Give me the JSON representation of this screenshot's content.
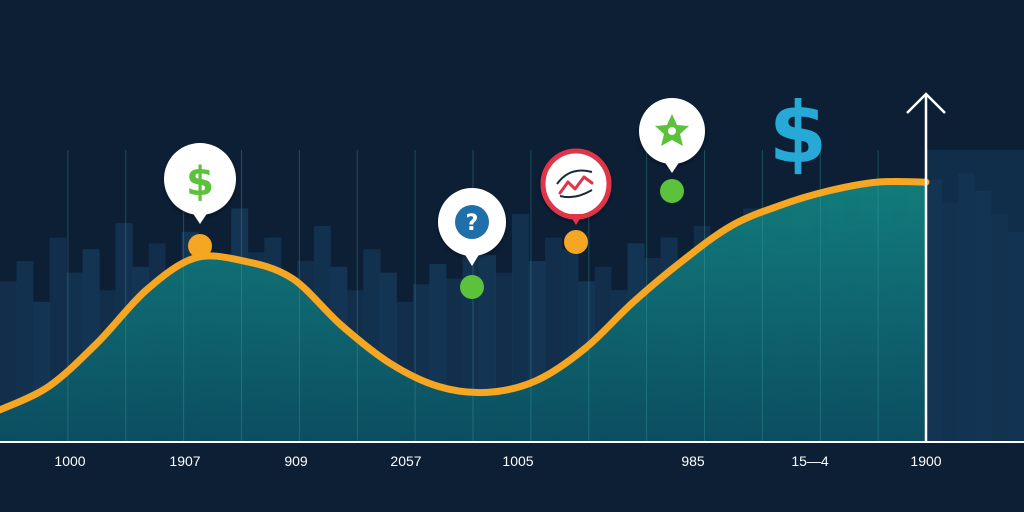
{
  "chart_data": {
    "type": "area",
    "title": "",
    "xlabel": "",
    "ylabel": "",
    "x_tick_labels": [
      "1000",
      "1907",
      "909",
      "2057",
      "1005",
      "985",
      "15—4",
      "1900"
    ],
    "series": [
      {
        "values": [
          0.11,
          0.19,
          0.34,
          0.52,
          0.63,
          0.62,
          0.56,
          0.4,
          0.27,
          0.19,
          0.17,
          0.21,
          0.32,
          0.48,
          0.62,
          0.74,
          0.81,
          0.86,
          0.89,
          0.89
        ]
      }
    ],
    "ylim": [
      0,
      1
    ],
    "grid": true,
    "markers": [
      {
        "x_index": 2,
        "icon": "dollar-icon",
        "dot_color": "#f5a623",
        "text": "$"
      },
      {
        "x_index": 8,
        "icon": "question-icon",
        "dot_color": "#5cc13b",
        "text": "?"
      },
      {
        "x_index": 10,
        "icon": "trend-chart-icon",
        "dot_color": "#f5a623",
        "text": ""
      },
      {
        "x_index": 12,
        "icon": "star-badge-icon",
        "dot_color": "#5cc13b",
        "text": ""
      }
    ],
    "background_bars": [
      0.55,
      0.62,
      0.48,
      0.7,
      0.58,
      0.66,
      0.52,
      0.75,
      0.6,
      0.68,
      0.5,
      0.72,
      0.63,
      0.57,
      0.8,
      0.65,
      0.7,
      0.55,
      0.62,
      0.74,
      0.6,
      0.52,
      0.66,
      0.58,
      0.48,
      0.54,
      0.61,
      0.56,
      0.72,
      0.64,
      0.58,
      0.78,
      0.62,
      0.7,
      0.66,
      0.55,
      0.6,
      0.52,
      0.68,
      0.63,
      0.7,
      0.6,
      0.74,
      0.69,
      0.62,
      0.8,
      0.72,
      0.66,
      0.78,
      0.7,
      0.83,
      0.74,
      0.88,
      0.8,
      0.76,
      0.85,
      0.9,
      0.82,
      0.92,
      0.86,
      0.78,
      0.72
    ],
    "colors": {
      "background": "#0c1f35",
      "bars": "#173a5c",
      "area": "#0f6e72",
      "line": "#f5a623",
      "axis": "#ffffff",
      "accent_dollar": "#26a9d6",
      "green": "#5cc13b",
      "red": "#e0344a"
    },
    "decor": {
      "big_symbol": "$",
      "arrow": "up-arrow-icon"
    }
  }
}
